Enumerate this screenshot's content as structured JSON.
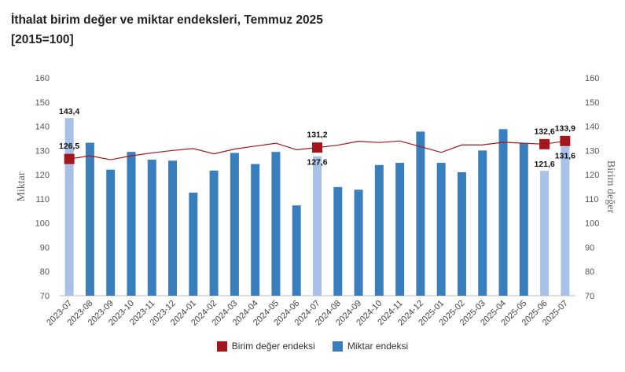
{
  "title": "İthalat birim değer ve miktar endeksleri, Temmuz 2025",
  "subtitle": "[2015=100]",
  "chart_data": {
    "type": "bar",
    "categories": [
      "2023-07",
      "2023-08",
      "2023-09",
      "2023-10",
      "2023-11",
      "2023-12",
      "2024-01",
      "2024-02",
      "2024-03",
      "2024-04",
      "2024-05",
      "2024-06",
      "2024-07",
      "2024-08",
      "2024-09",
      "2024-10",
      "2024-11",
      "2024-12",
      "2025-01",
      "2025-02",
      "2025-03",
      "2025-04",
      "2025-05",
      "2025-06",
      "2025-07"
    ],
    "ylabel_left": "Miktar",
    "ylabel_right": "Birim değer",
    "ylim": [
      70,
      160
    ],
    "yticks": [
      70,
      80,
      90,
      100,
      110,
      120,
      130,
      140,
      150,
      160
    ],
    "grid": false,
    "legend_position": "bottom",
    "series": [
      {
        "name": "Miktar endeksi",
        "kind": "bar",
        "axis": "left",
        "color": "#3a7fbd",
        "highlight_color": "#a8c1e6",
        "highlight_indices": [
          0,
          12,
          23,
          24
        ],
        "values": [
          143.4,
          133.2,
          122.1,
          129.4,
          126.2,
          125.8,
          112.6,
          121.7,
          129.0,
          124.4,
          129.4,
          107.3,
          127.6,
          114.9,
          113.8,
          124.0,
          124.9,
          137.8,
          124.9,
          121.0,
          130.0,
          138.8,
          133.0,
          121.6,
          131.6
        ]
      },
      {
        "name": "Birim değer endeksi",
        "kind": "line",
        "axis": "right",
        "color": "#a5151c",
        "marker_indices": [
          0,
          12,
          23,
          24
        ],
        "values": [
          126.5,
          127.8,
          126.2,
          127.8,
          129.0,
          130.0,
          130.8,
          128.6,
          130.6,
          131.8,
          133.0,
          130.3,
          131.2,
          132.2,
          133.8,
          133.3,
          133.9,
          131.6,
          129.2,
          132.3,
          132.3,
          133.4,
          133.0,
          132.6,
          133.9
        ]
      }
    ],
    "data_labels": [
      {
        "series": "Miktar endeksi",
        "index": 0,
        "text": "143,4"
      },
      {
        "series": "Miktar endeksi",
        "index": 12,
        "text": "127,6"
      },
      {
        "series": "Miktar endeksi",
        "index": 23,
        "text": "121,6"
      },
      {
        "series": "Miktar endeksi",
        "index": 24,
        "text": "131,6"
      },
      {
        "series": "Birim değer endeksi",
        "index": 0,
        "text": "126,5"
      },
      {
        "series": "Birim değer endeksi",
        "index": 12,
        "text": "131,2"
      },
      {
        "series": "Birim değer endeksi",
        "index": 23,
        "text": "132,6"
      },
      {
        "series": "Birim değer endeksi",
        "index": 24,
        "text": "133,9"
      }
    ]
  }
}
